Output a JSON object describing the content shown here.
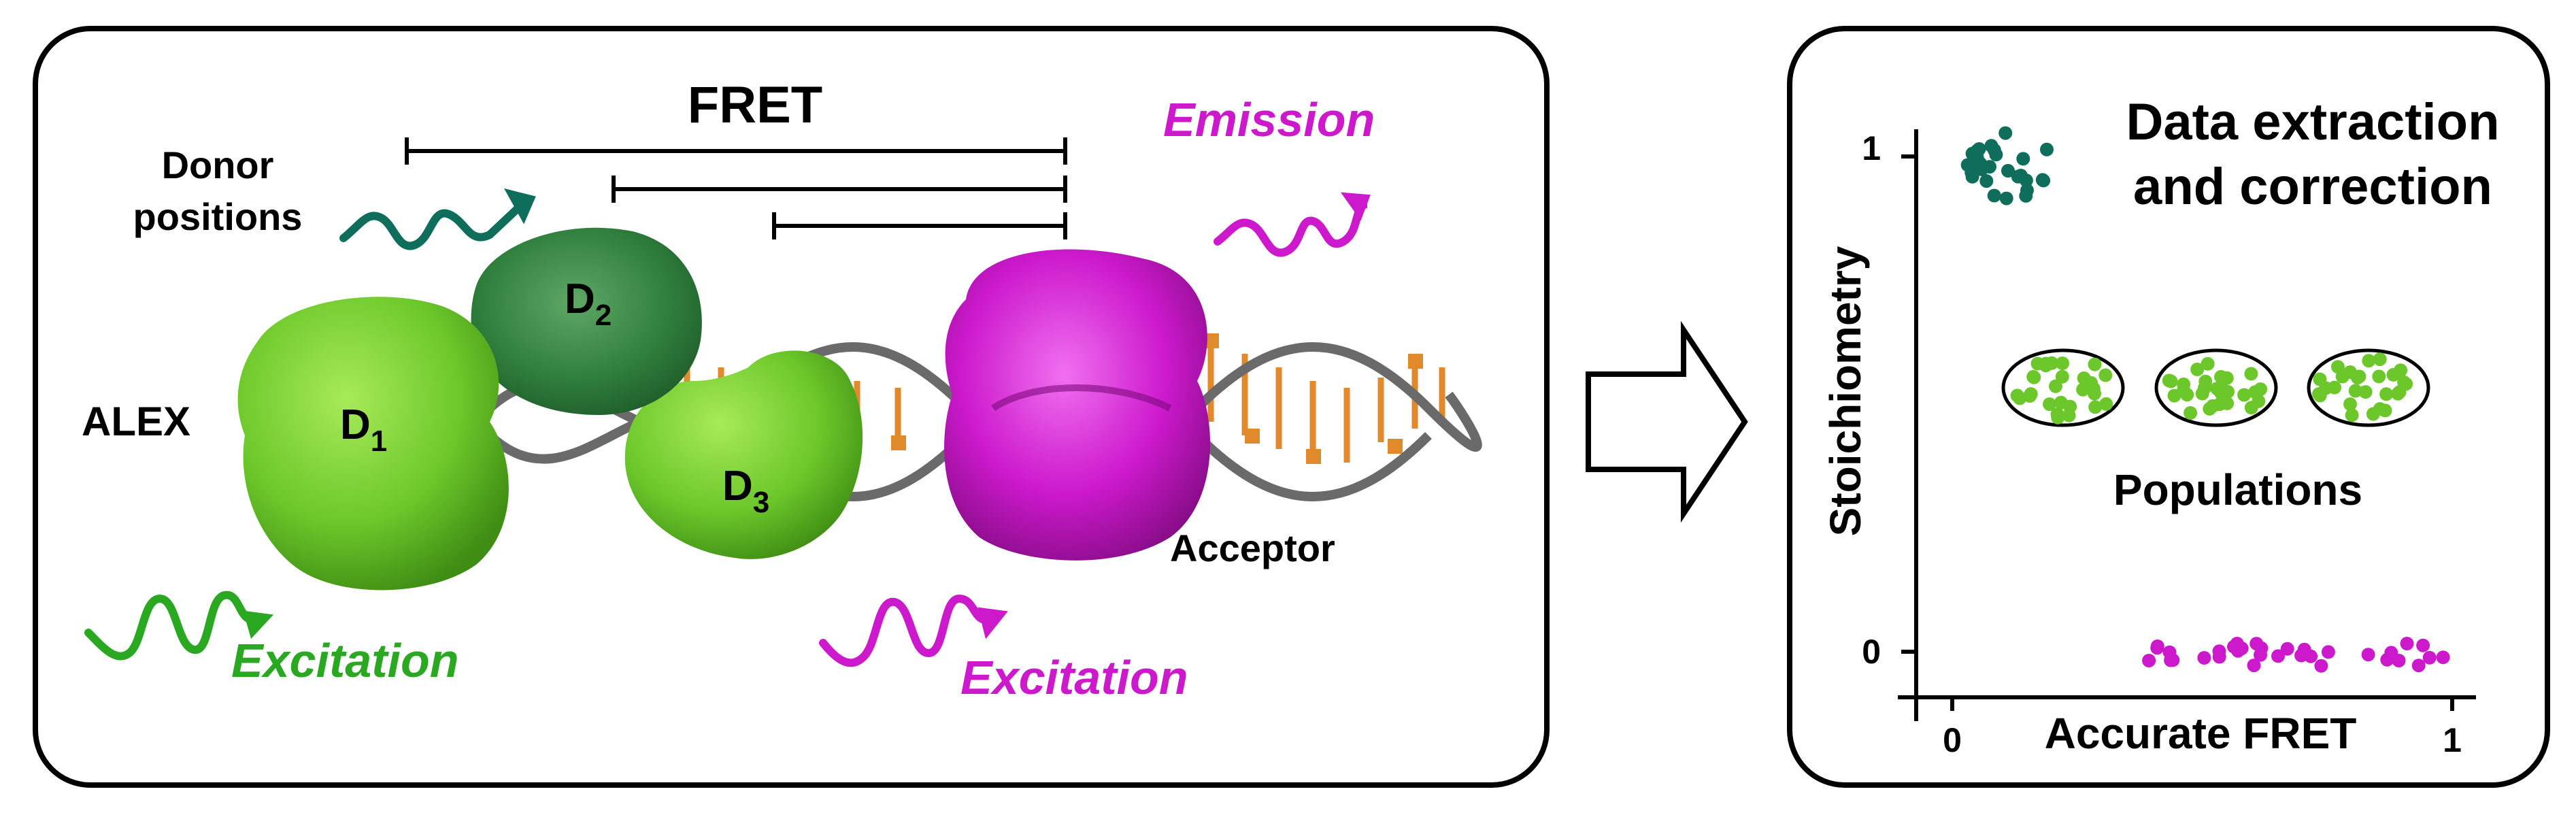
{
  "left_panel": {
    "fret_label": "FRET",
    "donor_positions_line1": "Donor",
    "donor_positions_line2": "positions",
    "alex_label": "ALEX",
    "emission_label": "Emission",
    "excitation_green_label": "Excitation",
    "excitation_magenta_label": "Excitation",
    "acceptor_label": "Acceptor",
    "donors": [
      {
        "letter": "D",
        "subscript": "1"
      },
      {
        "letter": "D",
        "subscript": "2"
      },
      {
        "letter": "D",
        "subscript": "3"
      }
    ]
  },
  "right_panel": {
    "title_line1": "Data extraction",
    "title_line2": "and correction",
    "populations_label": "Populations",
    "x_axis_label": "Accurate FRET",
    "y_axis_label": "Stoichiometry",
    "x_ticks": [
      "0",
      "1"
    ],
    "y_ticks": [
      "1",
      "0"
    ]
  },
  "colors": {
    "light_green": "#6cc82a",
    "dark_green": "#2e7d3c",
    "teal": "#0e6e5b",
    "magenta": "#cc19cc",
    "orange": "#e08a2c",
    "dna_backbone": "#6a6a6a"
  }
}
